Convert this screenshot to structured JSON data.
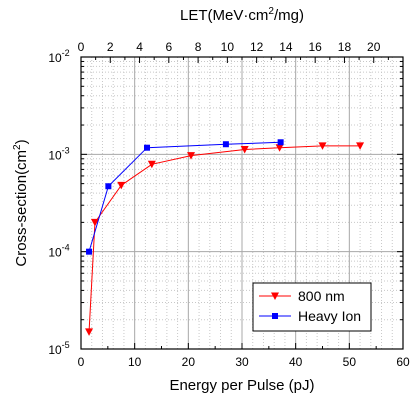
{
  "chart_data": {
    "type": "line",
    "title": "",
    "top_xlabel": {
      "main": "LET(MeV·cm",
      "sup": "2",
      "rest": "/mg)"
    },
    "xlabel": "Energy per Pulse (pJ)",
    "ylabel": {
      "main": "Cross-section(cm",
      "sup": "2",
      "rest": ")"
    },
    "xlim": [
      0,
      60
    ],
    "x_ticks": [
      0,
      10,
      20,
      30,
      40,
      50,
      60
    ],
    "top_xlim": [
      0,
      22
    ],
    "top_x_ticks": [
      0,
      2,
      4,
      6,
      8,
      10,
      12,
      14,
      16,
      18,
      20,
      22
    ],
    "y_scale": "log",
    "ylim": [
      1e-05,
      0.01
    ],
    "y_ticks": [
      {
        "value": 1e-05,
        "base": "10",
        "exp": "-5"
      },
      {
        "value": 0.0001,
        "base": "10",
        "exp": "-4"
      },
      {
        "value": 0.001,
        "base": "10",
        "exp": "-3"
      },
      {
        "value": 0.01,
        "base": "10",
        "exp": "-2"
      }
    ],
    "grid": true,
    "legend_position": "bottom-right",
    "series": [
      {
        "name": "800 nm",
        "color": "#ff0000",
        "marker": "triangle-down",
        "x": [
          1.5,
          2.6,
          7.5,
          13.2,
          20.5,
          30.5,
          37.0,
          45.0,
          52.0
        ],
        "y": [
          1.5e-05,
          0.0002,
          0.00048,
          0.00079,
          0.00097,
          0.00112,
          0.00117,
          0.00122,
          0.00122
        ]
      },
      {
        "name": "Heavy Ion",
        "color": "#0000ff",
        "marker": "square",
        "x": [
          1.5,
          5.1,
          12.3,
          27.0,
          37.2
        ],
        "y": [
          0.0001,
          0.00047,
          0.00117,
          0.00127,
          0.00133
        ]
      }
    ]
  }
}
